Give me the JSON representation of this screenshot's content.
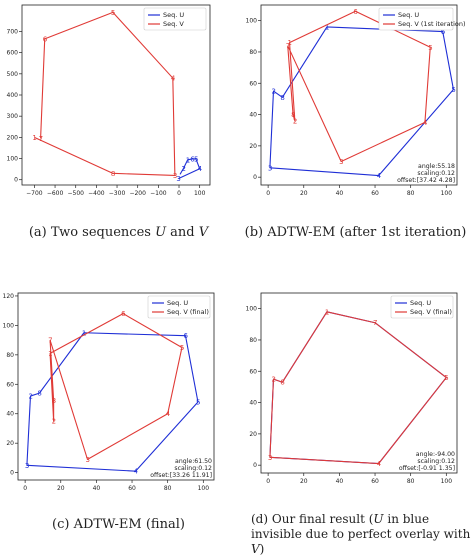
{
  "colors": {
    "u": "#1f2fd6",
    "v": "#e03a36"
  },
  "captions": [
    {
      "label": "(a)",
      "pre": "Two sequences ",
      "i1": "U",
      "mid": " and ",
      "i2": "V",
      "post": ""
    },
    {
      "label": "(b)",
      "pre": "ADTW-EM (after 1st iteration)",
      "i1": "",
      "mid": "",
      "i2": "",
      "post": ""
    },
    {
      "label": "(c)",
      "pre": "ADTW-EM (final)",
      "i1": "",
      "mid": "",
      "i2": "",
      "post": ""
    },
    {
      "label": "(d)",
      "pre": "Our final result (",
      "i1": "U",
      "mid": " in blue invisible due to perfect overlay with ",
      "i2": "V",
      "post": ")"
    }
  ],
  "chart_data": [
    {
      "type": "line",
      "xlim": [
        -760,
        150
      ],
      "ylim": [
        -25,
        825
      ],
      "xticks": [
        -700,
        -600,
        -500,
        -400,
        -300,
        -200,
        -100,
        0,
        100
      ],
      "yticks": [
        0,
        100,
        200,
        300,
        400,
        500,
        600,
        700
      ],
      "legend": {
        "placement": "top-right"
      },
      "series": [
        {
          "name": "Seq. U",
          "color_key": "u",
          "x": [
            -3,
            100,
            82,
            64,
            42,
            22,
            5
          ],
          "y": [
            5,
            52,
            98,
            98,
            94,
            54,
            25
          ],
          "labels": [
            "3",
            "4",
            "5",
            "6",
            "1",
            "2",
            ""
          ]
        },
        {
          "name": "Seq. V",
          "color_key": "v",
          "x": [
            -670,
            -650,
            -320,
            -30,
            -20,
            -320,
            -700
          ],
          "y": [
            195,
            665,
            790,
            480,
            20,
            30,
            200
          ],
          "labels": [
            "7",
            "6",
            "5",
            "4",
            "3",
            "8",
            "1"
          ]
        }
      ],
      "annotation": []
    },
    {
      "type": "line",
      "xlim": [
        -4,
        106
      ],
      "ylim": [
        -5,
        110
      ],
      "xticks": [
        0,
        20,
        40,
        60,
        80,
        100
      ],
      "yticks": [
        0,
        20,
        40,
        60,
        80,
        100
      ],
      "legend": {
        "placement": "top-right"
      },
      "series": [
        {
          "name": "Seq. U",
          "color_key": "u",
          "x": [
            1,
            3,
            8,
            33,
            98,
            104,
            62,
            1
          ],
          "y": [
            6,
            55,
            51,
            96,
            93,
            56,
            1,
            6
          ],
          "labels": [
            "3",
            "2",
            "8",
            "1",
            "6",
            "5",
            "4",
            ""
          ]
        },
        {
          "name": "Seq. V",
          "color_key": "v",
          "x": [
            11,
            14,
            15,
            12,
            49,
            91,
            88,
            41,
            11
          ],
          "y": [
            84,
            40,
            36,
            86,
            106,
            83,
            35,
            10,
            84
          ],
          "labels": [
            "7",
            "8",
            "2",
            "1",
            "6",
            "5",
            "4",
            "3",
            ""
          ]
        }
      ],
      "annotation": [
        "angle:55.18",
        "scaling:0.12",
        "offset:[37.42 4.28]"
      ]
    },
    {
      "type": "line",
      "xlim": [
        -4,
        106
      ],
      "ylim": [
        -5,
        122
      ],
      "xticks": [
        0,
        20,
        40,
        60,
        80,
        100
      ],
      "yticks": [
        0,
        20,
        40,
        60,
        80,
        100,
        120
      ],
      "legend": {
        "placement": "top-right"
      },
      "series": [
        {
          "name": "Seq. U",
          "color_key": "u",
          "x": [
            1,
            3,
            8,
            33,
            90,
            97,
            62,
            1
          ],
          "y": [
            5,
            52,
            54,
            95,
            93,
            48,
            1,
            5
          ],
          "labels": [
            "3",
            "2",
            "8",
            "1",
            "6",
            "5",
            "4",
            ""
          ]
        },
        {
          "name": "Seq. V",
          "color_key": "v",
          "x": [
            14,
            16,
            16,
            14,
            55,
            88,
            80,
            35,
            14
          ],
          "y": [
            90,
            49,
            35,
            81,
            108,
            85,
            40,
            9,
            90
          ],
          "labels": [
            "7",
            "8",
            "2",
            "1",
            "6",
            "5",
            "4",
            "3",
            ""
          ]
        }
      ],
      "annotation": [
        "angle:61.50",
        "scaling:0.12",
        "offset:[33.26 11.91]"
      ]
    },
    {
      "type": "line",
      "xlim": [
        -4,
        106
      ],
      "ylim": [
        -5,
        110
      ],
      "xticks": [
        0,
        20,
        40,
        60,
        80,
        100
      ],
      "yticks": [
        0,
        20,
        40,
        60,
        80,
        100
      ],
      "legend": {
        "placement": "top-right"
      },
      "series": [
        {
          "name": "Seq. U",
          "color_key": "u",
          "x": [
            1,
            3,
            8,
            33,
            60,
            100,
            62,
            1
          ],
          "y": [
            5,
            55,
            53,
            98,
            91,
            56,
            1,
            5
          ],
          "labels": [
            "",
            "",
            "",
            "",
            "",
            "",
            "",
            ""
          ]
        },
        {
          "name": "Seq. V (final)",
          "color_key": "v",
          "x": [
            1,
            3,
            8,
            33,
            60,
            100,
            62,
            1
          ],
          "y": [
            5,
            55,
            53,
            98,
            91,
            56,
            1,
            5
          ],
          "labels": [
            "3",
            "2",
            "8",
            "1",
            "7",
            "5",
            "4",
            ""
          ]
        }
      ],
      "annotation": [
        "angle:-94.00",
        "scaling:0.12",
        "offset:[-0.91 1.35]"
      ]
    }
  ]
}
